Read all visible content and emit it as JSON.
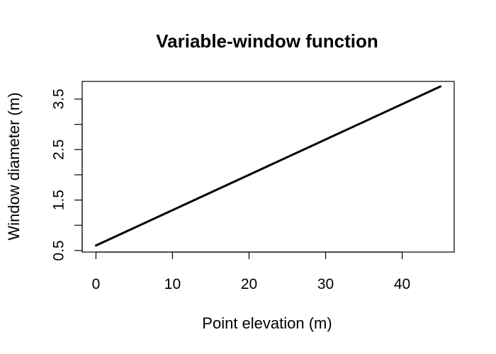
{
  "chart_data": {
    "type": "line",
    "title": "Variable-window function",
    "xlabel": "Point elevation (m)",
    "ylabel": "Window diameter (m)",
    "xlim": [
      -1.8,
      46.8
    ],
    "ylim": [
      0.47,
      3.85
    ],
    "x_ticks": [
      0,
      10,
      20,
      30,
      40
    ],
    "y_ticks": [
      0.5,
      1.0,
      1.5,
      2.0,
      2.5,
      3.0,
      3.5
    ],
    "y_tick_labels": [
      "0.5",
      "",
      "1.5",
      "",
      "2.5",
      "",
      "3.5"
    ],
    "grid": false,
    "series": [
      {
        "x": [
          0,
          45
        ],
        "y": [
          0.6,
          3.75
        ]
      }
    ],
    "line_color": "#000000"
  }
}
